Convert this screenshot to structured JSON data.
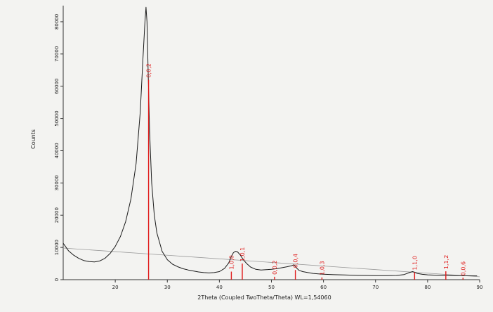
{
  "chart_data": {
    "type": "line",
    "xlabel": "2Theta (Coupled TwoTheta/Theta) WL=1,54060",
    "ylabel": "Counts",
    "xlim": [
      10,
      90
    ],
    "ylim": [
      0,
      85000
    ],
    "x_ticks": [
      "20",
      "30",
      "40",
      "50",
      "60",
      "70",
      "80",
      "90"
    ],
    "y_ticks": [
      "0",
      "10000",
      "20000",
      "30000",
      "40000",
      "50000",
      "60000",
      "70000",
      "80000"
    ],
    "grid": false,
    "series": [
      {
        "x": [
          10,
          11,
          12,
          13,
          14,
          15,
          16,
          17,
          18,
          19,
          20,
          21,
          22,
          23,
          24,
          24.8,
          25.3,
          25.7,
          25.9,
          26.1,
          26.3,
          26.6,
          27.0,
          27.5,
          28,
          29,
          30,
          31,
          32,
          33,
          34,
          35,
          36,
          37,
          38,
          39,
          40,
          41,
          41.8,
          42.3,
          42.7,
          43.1,
          43.5,
          44.0,
          44.4,
          44.8,
          45.3,
          46,
          47,
          48,
          49,
          50,
          51,
          52,
          53,
          53.8,
          54.3,
          54.6,
          54.9,
          55.3,
          56,
          57,
          58,
          59,
          60,
          62,
          64,
          66,
          68,
          70,
          72,
          74,
          75.5,
          76.5,
          77.1,
          77.5,
          78,
          79,
          80,
          82,
          84,
          86,
          88,
          89.5
        ],
        "y": [
          11300,
          9000,
          7600,
          6600,
          5900,
          5600,
          5500,
          5800,
          6600,
          8100,
          10300,
          13400,
          18000,
          25000,
          36000,
          52000,
          68000,
          80000,
          84500,
          80000,
          66000,
          46000,
          30000,
          20000,
          14500,
          8800,
          6200,
          4800,
          4000,
          3400,
          3000,
          2700,
          2400,
          2200,
          2100,
          2200,
          2500,
          3500,
          5200,
          7200,
          8400,
          8800,
          8600,
          7700,
          6700,
          5800,
          4900,
          3900,
          3200,
          3000,
          3100,
          3200,
          3400,
          3700,
          4000,
          4300,
          4600,
          4100,
          3500,
          2900,
          2500,
          2200,
          1950,
          1800,
          1700,
          1550,
          1450,
          1350,
          1300,
          1250,
          1250,
          1300,
          1600,
          2200,
          2500,
          2300,
          1950,
          1650,
          1500,
          1380,
          1300,
          1250,
          1200,
          1180
        ]
      }
    ],
    "background_line": {
      "x": [
        10,
        90
      ],
      "y": [
        9800,
        900
      ]
    },
    "reference_lines": [
      {
        "label": "0,0,2",
        "x": 26.4,
        "height": 62000
      },
      {
        "label": "1,0,0",
        "x": 42.3,
        "height": 2500
      },
      {
        "label": "1,0,1",
        "x": 44.4,
        "height": 5000
      },
      {
        "label": "0,0,2",
        "x": 50.6,
        "height": 900
      },
      {
        "label": "0,0,4",
        "x": 54.6,
        "height": 3000
      },
      {
        "label": "1,0,3",
        "x": 59.7,
        "height": 700
      },
      {
        "label": "1,1,0",
        "x": 77.5,
        "height": 2300
      },
      {
        "label": "1,1,2",
        "x": 83.5,
        "height": 2600
      },
      {
        "label": "0,0,6",
        "x": 86.8,
        "height": 600
      }
    ],
    "colors": {
      "data_line": "#1a1a1a",
      "reference": "#e01b1b",
      "background_line": "#9a9a9a",
      "axis": "#333333"
    }
  }
}
